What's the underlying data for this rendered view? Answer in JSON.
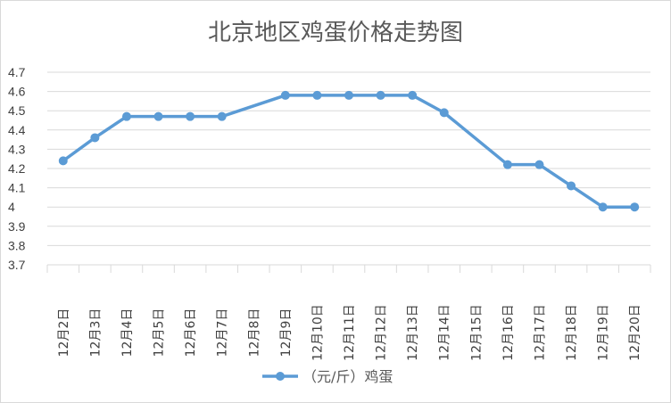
{
  "chart_data": {
    "type": "line",
    "title": "北京地区鸡蛋价格走势图",
    "categories": [
      "12月2日",
      "12月3日",
      "12月4日",
      "12月5日",
      "12月6日",
      "12月7日",
      "12月8日",
      "12月9日",
      "12月10日",
      "12月11日",
      "12月12日",
      "12月13日",
      "12月14日",
      "12月15日",
      "12月16日",
      "12月17日",
      "12月18日",
      "12月19日",
      "12月20日"
    ],
    "series": [
      {
        "name": "（元/斤）鸡蛋",
        "color": "#5b9bd5",
        "values": [
          4.24,
          4.36,
          4.47,
          4.47,
          4.47,
          4.47,
          null,
          4.58,
          4.58,
          4.58,
          4.58,
          4.58,
          4.49,
          null,
          4.22,
          4.22,
          4.11,
          4.0,
          4.0
        ]
      }
    ],
    "ylim": [
      3.7,
      4.7
    ],
    "yticks": [
      "3.7",
      "3.8",
      "3.9",
      "4",
      "4.1",
      "4.2",
      "4.3",
      "4.4",
      "4.5",
      "4.6",
      "4.7"
    ],
    "grid": true,
    "legend_position": "bottom"
  }
}
